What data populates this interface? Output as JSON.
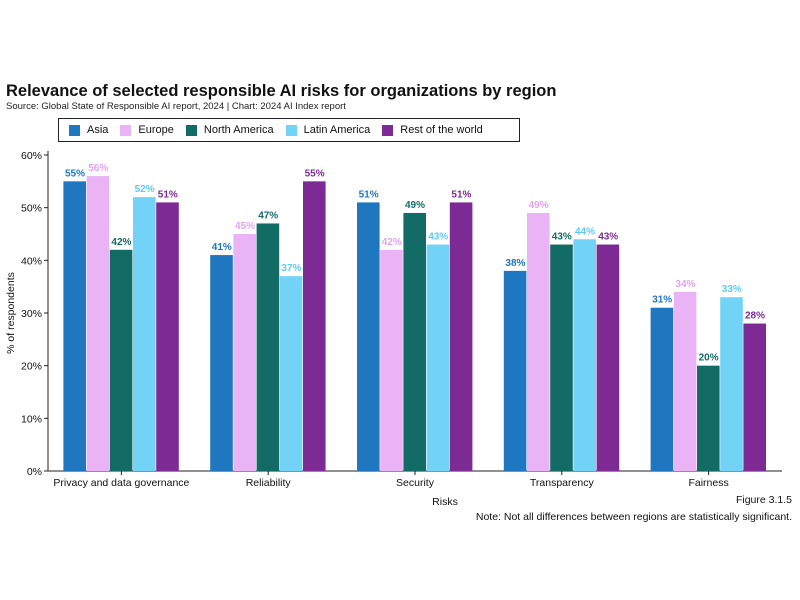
{
  "chart_data": {
    "type": "bar",
    "title": "Relevance of selected responsible AI risks for organizations by region",
    "source": "Source: Global State of Responsible AI report, 2024 | Chart: 2024 AI Index report",
    "xlabel": "Risks",
    "ylabel": "% of respondents",
    "ylim": [
      0,
      60
    ],
    "yticks": [
      "0%",
      "10%",
      "20%",
      "30%",
      "40%",
      "50%",
      "60%"
    ],
    "grid": false,
    "legend_position": "top-left",
    "categories": [
      "Privacy and data governance",
      "Reliability",
      "Security",
      "Transparency",
      "Fairness"
    ],
    "series": [
      {
        "name": "Asia",
        "color": "#1f77c0",
        "label_color": "#1f77c0",
        "values": [
          55,
          41,
          51,
          38,
          31
        ]
      },
      {
        "name": "Europe",
        "color": "#eab3f5",
        "label_color": "#e3a2f0",
        "values": [
          56,
          45,
          42,
          49,
          34
        ]
      },
      {
        "name": "North America",
        "color": "#136b65",
        "label_color": "#136b65",
        "values": [
          42,
          47,
          49,
          43,
          20
        ]
      },
      {
        "name": "Latin America",
        "color": "#72d3f7",
        "label_color": "#5fcaf3",
        "values": [
          52,
          37,
          43,
          44,
          33
        ]
      },
      {
        "name": "Rest of the world",
        "color": "#7e2a94",
        "label_color": "#7e2a94",
        "values": [
          51,
          55,
          51,
          43,
          28
        ]
      }
    ],
    "figure_number": "Figure 3.1.5",
    "note": "Note: Not all differences between regions are statistically significant."
  }
}
